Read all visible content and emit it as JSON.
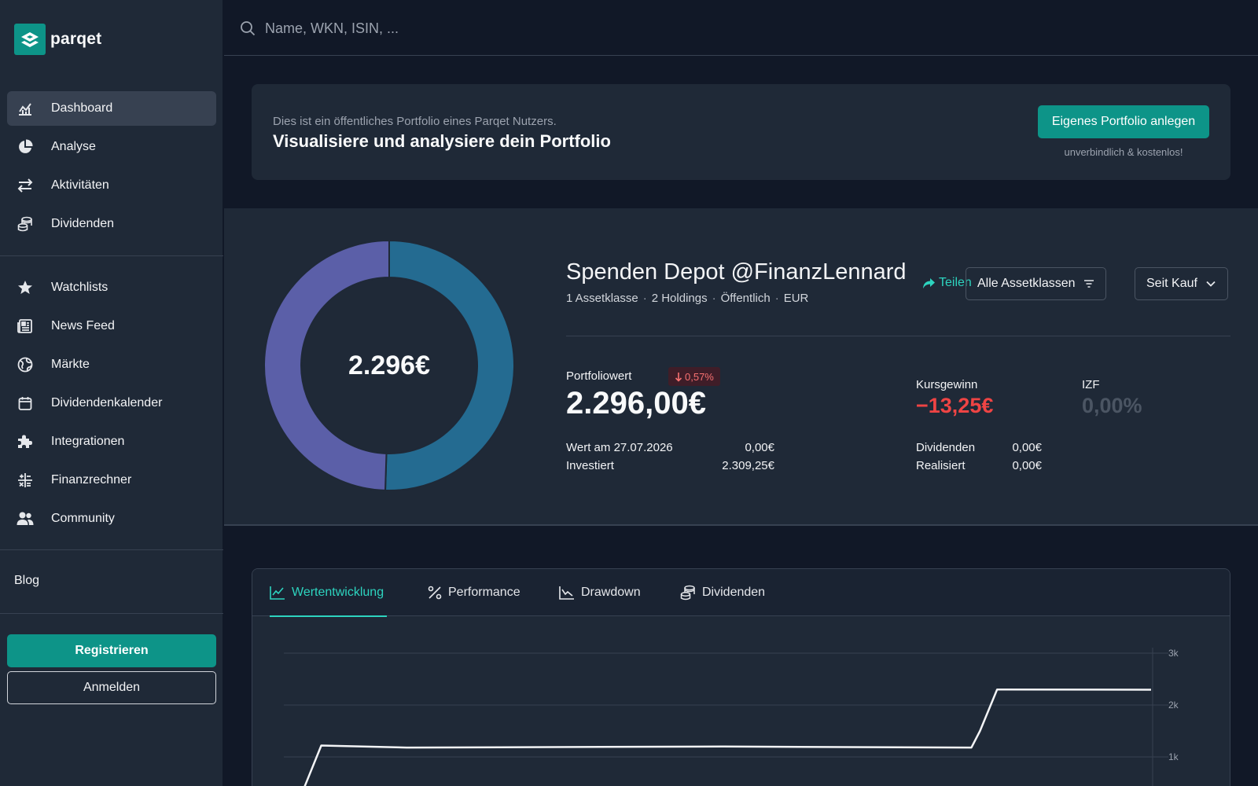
{
  "brand": {
    "name": "parqet"
  },
  "nav": {
    "primary": [
      {
        "label": "Dashboard",
        "icon": "chart-line-icon",
        "active": true
      },
      {
        "label": "Analyse",
        "icon": "pie-chart-icon"
      },
      {
        "label": "Aktivitäten",
        "icon": "arrows-exchange-icon"
      },
      {
        "label": "Dividenden",
        "icon": "coins-icon"
      }
    ],
    "secondary": [
      {
        "label": "Watchlists",
        "icon": "star-icon"
      },
      {
        "label": "News Feed",
        "icon": "newspaper-icon"
      },
      {
        "label": "Märkte",
        "icon": "globe-icon"
      },
      {
        "label": "Dividendenkalender",
        "icon": "calendar-icon"
      },
      {
        "label": "Integrationen",
        "icon": "puzzle-icon"
      },
      {
        "label": "Finanzrechner",
        "icon": "calculator-icon"
      },
      {
        "label": "Community",
        "icon": "users-icon"
      }
    ],
    "blog": "Blog",
    "register": "Registrieren",
    "login": "Anmelden"
  },
  "search": {
    "placeholder": "Name, WKN, ISIN, ..."
  },
  "banner": {
    "subtitle": "Dies ist ein öffentliches Portfolio eines Parqet Nutzers.",
    "title": "Visualisiere und analysiere dein Portfolio",
    "cta": "Eigenes Portfolio anlegen",
    "note": "unverbindlich & kostenlos!"
  },
  "portfolio": {
    "donut_center": "2.296€",
    "donut_segments": [
      {
        "fraction": 0.505,
        "color": "#246b91"
      },
      {
        "fraction": 0.495,
        "color": "#5b5fa8"
      }
    ],
    "title": "Spenden Depot @FinanzLennard",
    "meta": [
      "1 Assetklasse",
      "2 Holdings",
      "Öffentlich",
      "EUR"
    ],
    "share": "Teilen",
    "filter_assetclass": "Alle Assetklassen",
    "filter_period": "Seit Kauf",
    "value_label": "Portfoliowert",
    "change_badge": "0,57%",
    "value": "2.296,00€",
    "rows_left": [
      {
        "label": "Wert am 27.07.2026",
        "value": "0,00€"
      },
      {
        "label": "Investiert",
        "value": "2.309,25€"
      }
    ],
    "kursgewinn_label": "Kursgewinn",
    "kursgewinn_value": "−13,25€",
    "izf_label": "IZF",
    "izf_value": "0,00%",
    "rows_right": [
      {
        "label": "Dividenden",
        "value": "0,00€"
      },
      {
        "label": "Realisiert",
        "value": "0,00€"
      }
    ]
  },
  "chart_tabs": [
    {
      "label": "Wertentwicklung",
      "icon": "line-chart-icon",
      "active": true
    },
    {
      "label": "Performance",
      "icon": "percent-icon"
    },
    {
      "label": "Drawdown",
      "icon": "drawdown-chart-icon"
    },
    {
      "label": "Dividenden",
      "icon": "coins-icon"
    }
  ],
  "chart_data": {
    "type": "line",
    "y_ticks": [
      "3k",
      "2k",
      "1k"
    ],
    "ylim": [
      0,
      3000
    ],
    "grid": true,
    "series": [
      {
        "x": [
          0,
          0.03,
          0.13,
          0.5,
          0.79,
          0.8,
          0.82,
          1.0
        ],
        "values": [
          0,
          1220,
          1180,
          1200,
          1180,
          1500,
          2300,
          2296
        ]
      }
    ]
  },
  "colors": {
    "accent": "#0d9488",
    "accent_light": "#2dd4bf",
    "negative": "#ef4444"
  }
}
